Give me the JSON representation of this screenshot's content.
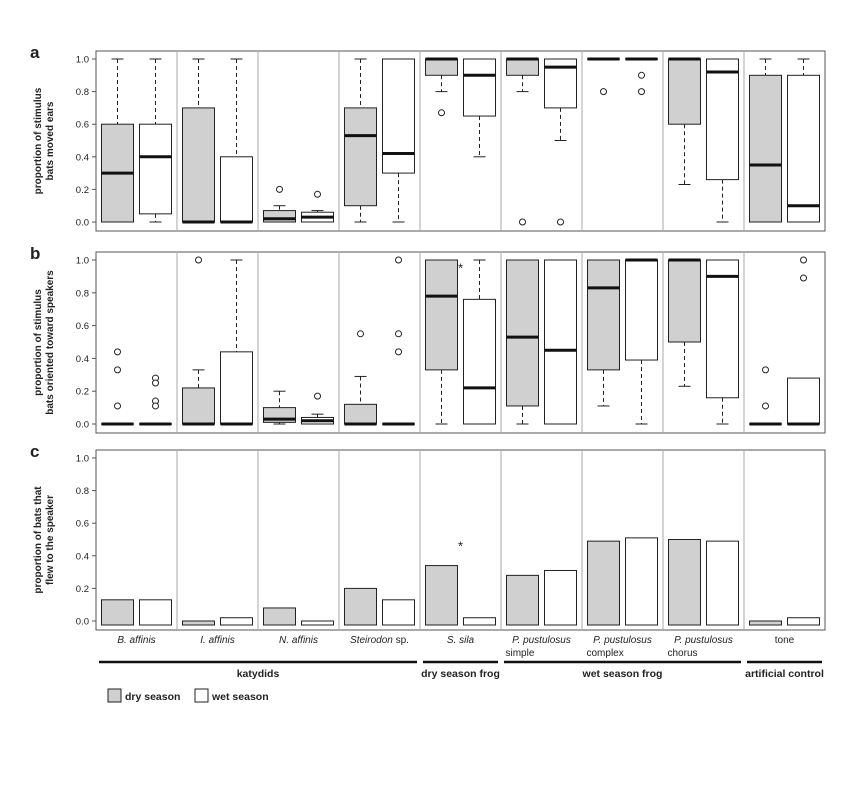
{
  "chart_data": {
    "type": "box",
    "colors": {
      "dry": "#d0d0d0",
      "wet": "#ffffff",
      "line": "#222222",
      "divider": "#aaaaaa"
    },
    "categories": [
      {
        "name": "B. affinis",
        "suffix": "",
        "sub": "",
        "italic": true
      },
      {
        "name": "I. affinis",
        "suffix": "",
        "sub": "",
        "italic": true
      },
      {
        "name": "N. affinis",
        "suffix": "",
        "sub": "",
        "italic": true
      },
      {
        "name": "Steirodon",
        "suffix": " sp.",
        "sub": "",
        "italic": true
      },
      {
        "name": "S. sila",
        "suffix": "",
        "sub": "",
        "italic": true
      },
      {
        "name": "P. pustulosus",
        "suffix": "",
        "sub": "simple",
        "italic": true
      },
      {
        "name": "P. pustulosus",
        "suffix": "",
        "sub": "complex",
        "italic": true
      },
      {
        "name": "P. pustulosus",
        "suffix": "",
        "sub": "chorus",
        "italic": true
      },
      {
        "name": "tone",
        "suffix": "",
        "sub": "",
        "italic": false
      }
    ],
    "groups": [
      {
        "label": "katydids",
        "from": 0,
        "to": 3
      },
      {
        "label": "dry season frog",
        "from": 4,
        "to": 4
      },
      {
        "label": "wet season frog",
        "from": 5,
        "to": 7
      },
      {
        "label": "artificial control",
        "from": 8,
        "to": 8
      }
    ],
    "legend": {
      "dry": "dry season",
      "wet": "wet season"
    },
    "panels": [
      {
        "letter": "a",
        "ylabel": [
          "proportion of stimulus",
          "bats moved ears"
        ],
        "ylim": [
          0,
          1
        ],
        "yticks": [
          "0.0",
          "0.2",
          "0.4",
          "0.6",
          "0.8",
          "1.0"
        ],
        "star": null,
        "boxes": [
          [
            {
              "min": 0,
              "q1": 0,
              "med": 0.3,
              "q3": 0.6,
              "max": 1,
              "out": []
            },
            {
              "min": 0,
              "q1": 0.05,
              "med": 0.4,
              "q3": 0.6,
              "max": 1,
              "out": []
            }
          ],
          [
            {
              "min": 0,
              "q1": 0,
              "med": 0,
              "q3": 0.7,
              "max": 1,
              "out": []
            },
            {
              "min": 0,
              "q1": 0,
              "med": 0,
              "q3": 0.4,
              "max": 1,
              "out": []
            }
          ],
          [
            {
              "min": 0,
              "q1": 0,
              "med": 0.02,
              "q3": 0.07,
              "max": 0.1,
              "out": [
                0.2
              ]
            },
            {
              "min": 0,
              "q1": 0,
              "med": 0.03,
              "q3": 0.06,
              "max": 0.07,
              "out": [
                0.17
              ]
            }
          ],
          [
            {
              "min": 0,
              "q1": 0.1,
              "med": 0.53,
              "q3": 0.7,
              "max": 1,
              "out": []
            },
            {
              "min": 0,
              "q1": 0.3,
              "med": 0.42,
              "q3": 1,
              "max": 1,
              "out": []
            }
          ],
          [
            {
              "min": 0.8,
              "q1": 0.9,
              "med": 1,
              "q3": 1,
              "max": 1,
              "out": [
                0.67
              ]
            },
            {
              "min": 0.4,
              "q1": 0.65,
              "med": 0.9,
              "q3": 1,
              "max": 1,
              "out": []
            }
          ],
          [
            {
              "min": 0.8,
              "q1": 0.9,
              "med": 1,
              "q3": 1,
              "max": 1,
              "out": [
                0
              ]
            },
            {
              "min": 0.5,
              "q1": 0.7,
              "med": 0.95,
              "q3": 1,
              "max": 1,
              "out": [
                0
              ]
            }
          ],
          [
            {
              "min": 1,
              "q1": 1,
              "med": 1,
              "q3": 1,
              "max": 1,
              "out": [
                0.8
              ]
            },
            {
              "min": 1,
              "q1": 1,
              "med": 1,
              "q3": 1,
              "max": 1,
              "out": [
                0.9,
                0.8
              ]
            }
          ],
          [
            {
              "min": 0.23,
              "q1": 0.6,
              "med": 1,
              "q3": 1,
              "max": 1,
              "out": []
            },
            {
              "min": 0,
              "q1": 0.26,
              "med": 0.92,
              "q3": 1,
              "max": 1,
              "out": []
            }
          ],
          [
            {
              "min": 0,
              "q1": 0,
              "med": 0.35,
              "q3": 0.9,
              "max": 1,
              "out": []
            },
            {
              "min": 0,
              "q1": 0,
              "med": 0.1,
              "q3": 0.9,
              "max": 1,
              "out": []
            }
          ]
        ]
      },
      {
        "letter": "b",
        "ylabel": [
          "proportion of stimulus",
          "bats oriented toward speakers"
        ],
        "ylim": [
          0,
          1
        ],
        "yticks": [
          "0.0",
          "0.2",
          "0.4",
          "0.6",
          "0.8",
          "1.0"
        ],
        "star": {
          "category": 4,
          "y": 0.96,
          "text": "*"
        },
        "boxes": [
          [
            {
              "min": 0,
              "q1": 0,
              "med": 0,
              "q3": 0,
              "max": 0,
              "out": [
                0.44,
                0.33,
                0.11
              ]
            },
            {
              "min": 0,
              "q1": 0,
              "med": 0,
              "q3": 0,
              "max": 0,
              "out": [
                0.28,
                0.25,
                0.14,
                0.11
              ]
            }
          ],
          [
            {
              "min": 0,
              "q1": 0,
              "med": 0,
              "q3": 0.22,
              "max": 0.33,
              "out": [
                1
              ]
            },
            {
              "min": 0,
              "q1": 0,
              "med": 0,
              "q3": 0.44,
              "max": 1,
              "out": []
            }
          ],
          [
            {
              "min": 0,
              "q1": 0.01,
              "med": 0.03,
              "q3": 0.1,
              "max": 0.2,
              "out": []
            },
            {
              "min": 0,
              "q1": 0,
              "med": 0.02,
              "q3": 0.04,
              "max": 0.06,
              "out": [
                0.17
              ]
            }
          ],
          [
            {
              "min": 0,
              "q1": 0,
              "med": 0,
              "q3": 0.12,
              "max": 0.29,
              "out": [
                0.55
              ]
            },
            {
              "min": 0,
              "q1": 0,
              "med": 0,
              "q3": 0,
              "max": 0,
              "out": [
                1,
                0.55,
                0.44
              ]
            }
          ],
          [
            {
              "min": 0,
              "q1": 0.33,
              "med": 0.78,
              "q3": 1,
              "max": 1,
              "out": []
            },
            {
              "min": 0,
              "q1": 0,
              "med": 0.22,
              "q3": 0.76,
              "max": 1,
              "out": []
            }
          ],
          [
            {
              "min": 0,
              "q1": 0.11,
              "med": 0.53,
              "q3": 1,
              "max": 1,
              "out": []
            },
            {
              "min": 0,
              "q1": 0,
              "med": 0.45,
              "q3": 1,
              "max": 1,
              "out": []
            }
          ],
          [
            {
              "min": 0.11,
              "q1": 0.33,
              "med": 0.83,
              "q3": 1,
              "max": 1,
              "out": []
            },
            {
              "min": 0,
              "q1": 0.39,
              "med": 1,
              "q3": 1,
              "max": 1,
              "out": []
            }
          ],
          [
            {
              "min": 0.23,
              "q1": 0.5,
              "med": 1,
              "q3": 1,
              "max": 1,
              "out": []
            },
            {
              "min": 0,
              "q1": 0.16,
              "med": 0.9,
              "q3": 1,
              "max": 1,
              "out": []
            }
          ],
          [
            {
              "min": 0,
              "q1": 0,
              "med": 0,
              "q3": 0,
              "max": 0,
              "out": [
                0.33,
                0.11
              ]
            },
            {
              "min": 0,
              "q1": 0,
              "med": 0,
              "q3": 0.28,
              "max": 0.28,
              "out": [
                1,
                0.89
              ]
            }
          ]
        ]
      },
      {
        "letter": "c",
        "ylabel": [
          "proportion of bats that",
          "flew to the speaker"
        ],
        "ylim": [
          0,
          1
        ],
        "yticks": [
          "0.0",
          "0.2",
          "0.4",
          "0.6",
          "0.8",
          "1.0"
        ],
        "star": {
          "category": 4,
          "y": 0.47,
          "text": "*"
        },
        "bars": [
          [
            0.13,
            0.13
          ],
          [
            0,
            0.02
          ],
          [
            0.08,
            0
          ],
          [
            0.2,
            0.13
          ],
          [
            0.34,
            0.02
          ],
          [
            0.28,
            0.31
          ],
          [
            0.49,
            0.51
          ],
          [
            0.5,
            0.49
          ],
          [
            0,
            0.02
          ]
        ]
      }
    ]
  }
}
